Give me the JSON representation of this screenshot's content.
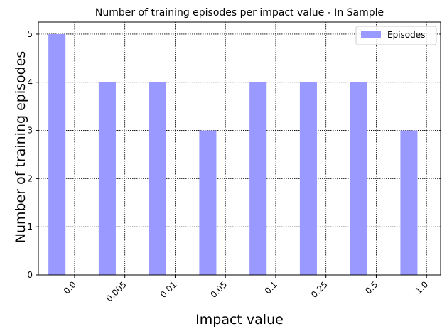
{
  "chart_data": {
    "type": "bar",
    "title": "Number of training episodes per impact value - In Sample",
    "xlabel": "Impact value",
    "ylabel": "Number of training episodes",
    "categories": [
      "0.0",
      "0.005",
      "0.01",
      "0.05",
      "0.1",
      "0.25",
      "0.5",
      "1.0"
    ],
    "series": [
      {
        "name": "Episodes",
        "values": [
          5,
          4,
          4,
          3,
          4,
          4,
          4,
          3
        ]
      }
    ],
    "yticks": [
      "0",
      "1",
      "2",
      "3",
      "4",
      "5"
    ],
    "ylim": [
      0,
      5.25
    ],
    "grid": true,
    "legend_position": "top-right",
    "bar_color": "#9999ff"
  }
}
